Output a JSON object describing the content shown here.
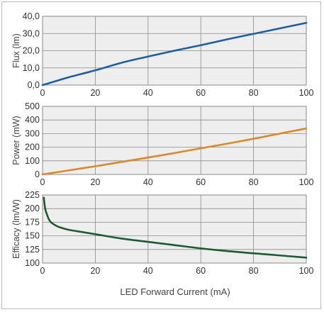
{
  "chart_data": [
    {
      "type": "line",
      "ylabel": "Flux (lm)",
      "xlim": [
        0,
        100
      ],
      "ylim": [
        0,
        40
      ],
      "xticks": [
        "0",
        "20",
        "40",
        "60",
        "80",
        "100"
      ],
      "yticks": [
        "0,0",
        "10,0",
        "20,0",
        "30,0",
        "40,0"
      ],
      "grid": true,
      "color": "#1f5fa0",
      "x": [
        0,
        5,
        10,
        20,
        30,
        40,
        50,
        60,
        70,
        80,
        90,
        100
      ],
      "y": [
        0,
        2.3,
        4.6,
        8.6,
        13.0,
        16.6,
        20.0,
        23.2,
        26.6,
        29.8,
        33.0,
        36.2
      ]
    },
    {
      "type": "line",
      "ylabel": "Power (mW)",
      "xlim": [
        0,
        100
      ],
      "ylim": [
        0,
        500
      ],
      "xticks": [
        "0",
        "20",
        "40",
        "60",
        "80",
        "100"
      ],
      "yticks": [
        "0",
        "100",
        "200",
        "300",
        "400",
        "500"
      ],
      "grid": true,
      "color": "#d9892a",
      "x": [
        0,
        10,
        20,
        30,
        40,
        50,
        60,
        70,
        80,
        90,
        100
      ],
      "y": [
        0,
        30,
        60,
        92,
        124,
        157,
        192,
        226,
        262,
        300,
        338
      ]
    },
    {
      "type": "line",
      "ylabel": "Efficacy (lm/W)",
      "xlabel": "LED Forward Current (mA)",
      "xlim": [
        0,
        100
      ],
      "ylim": [
        100,
        225
      ],
      "xticks": [
        "0",
        "20",
        "40",
        "60",
        "80",
        "100"
      ],
      "yticks": [
        "100",
        "125",
        "150",
        "175",
        "200",
        "225"
      ],
      "grid": true,
      "color": "#1e5a34",
      "x": [
        0.5,
        1,
        2,
        3,
        5,
        7,
        10,
        15,
        20,
        30,
        40,
        50,
        60,
        70,
        80,
        90,
        100
      ],
      "y": [
        220,
        200,
        185,
        176,
        169,
        165,
        161,
        157,
        153,
        145,
        139,
        133,
        127,
        122,
        118,
        114,
        110
      ]
    }
  ]
}
